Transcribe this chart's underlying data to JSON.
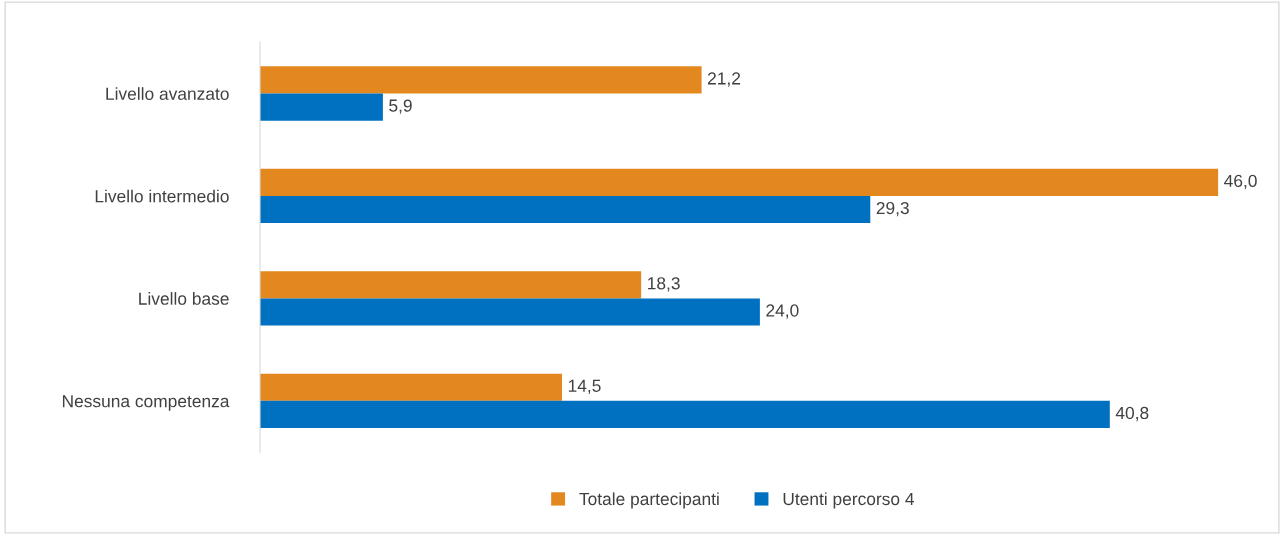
{
  "chart_data": {
    "type": "bar",
    "orientation": "horizontal",
    "categories": [
      "Livello avanzato",
      "Livello intermedio",
      "Livello base",
      "Nessuna competenza"
    ],
    "series": [
      {
        "name": "Totale partecipanti",
        "color": "#e3871f",
        "values": [
          21.2,
          46.0,
          18.3,
          14.5
        ],
        "value_labels": [
          "21,2",
          "46,0",
          "18,3",
          "14,5"
        ]
      },
      {
        "name": "Utenti percorso 4",
        "color": "#0070c0",
        "values": [
          5.9,
          29.3,
          24.0,
          40.8
        ],
        "value_labels": [
          "5,9",
          "29,3",
          "24,0",
          "40,8"
        ]
      }
    ],
    "legend": "bottom",
    "tick_labels": "y"
  }
}
